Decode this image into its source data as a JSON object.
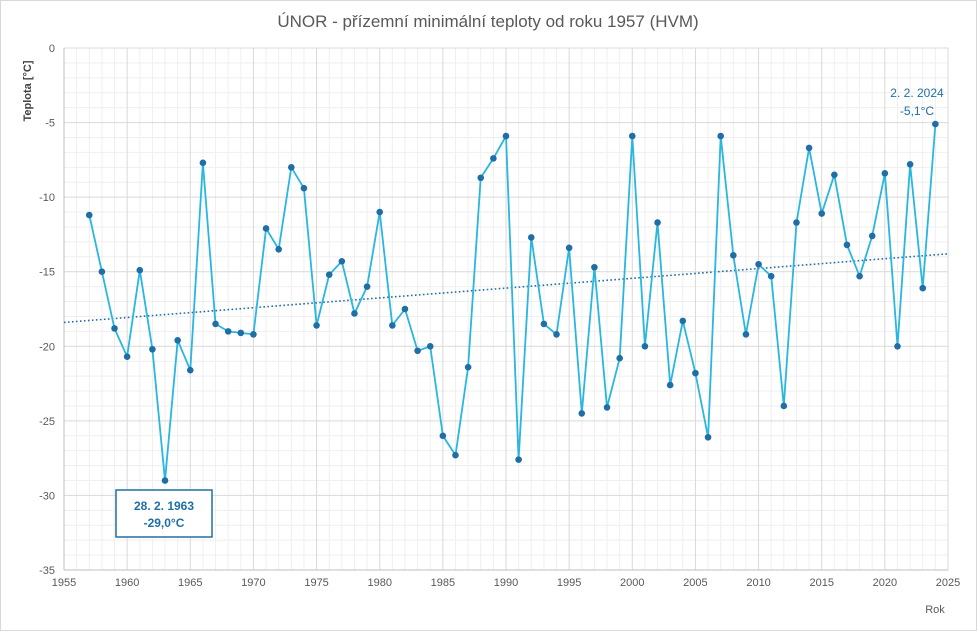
{
  "chart_data": {
    "type": "line",
    "title": "ÚNOR - přízemní minimální teploty od roku 1957 (HVM)",
    "xlabel": "Rok",
    "ylabel": "Teplota [°C]",
    "xlim": [
      1955,
      2025
    ],
    "ylim": [
      -35,
      0
    ],
    "x_ticks": [
      "1955",
      "1960",
      "1965",
      "1970",
      "1975",
      "1980",
      "1985",
      "1990",
      "1995",
      "2000",
      "2005",
      "2010",
      "2015",
      "2020",
      "2025"
    ],
    "y_ticks": [
      "0",
      "-5",
      "-10",
      "-15",
      "-20",
      "-25",
      "-30",
      "-35"
    ],
    "grid": true,
    "series": [
      {
        "color": "#29b6e0",
        "marker_color": "#1f6fa6",
        "x": [
          1957,
          1958,
          1959,
          1960,
          1961,
          1962,
          1963,
          1964,
          1965,
          1966,
          1967,
          1968,
          1969,
          1970,
          1971,
          1972,
          1973,
          1974,
          1975,
          1976,
          1977,
          1978,
          1979,
          1980,
          1981,
          1982,
          1983,
          1984,
          1985,
          1986,
          1987,
          1988,
          1989,
          1990,
          1991,
          1992,
          1993,
          1994,
          1995,
          1996,
          1997,
          1998,
          1999,
          2000,
          2001,
          2002,
          2003,
          2004,
          2005,
          2006,
          2007,
          2008,
          2009,
          2010,
          2011,
          2012,
          2013,
          2014,
          2015,
          2016,
          2017,
          2018,
          2019,
          2020,
          2021,
          2022,
          2023,
          2024
        ],
        "values": [
          -11.2,
          -15.0,
          -18.8,
          -20.7,
          -14.9,
          -20.2,
          -29.0,
          -19.6,
          -21.6,
          -7.7,
          -18.5,
          -19.0,
          -19.1,
          -19.2,
          -12.1,
          -13.5,
          -8.0,
          -9.4,
          -18.6,
          -15.2,
          -14.3,
          -17.8,
          -16.0,
          -11.0,
          -18.6,
          -17.5,
          -20.3,
          -20.0,
          -26.0,
          -27.3,
          -21.4,
          -8.7,
          -7.4,
          -5.9,
          -27.6,
          -12.7,
          -18.5,
          -19.2,
          -13.4,
          -24.5,
          -14.7,
          -24.1,
          -20.8,
          -5.9,
          -20.0,
          -11.7,
          -22.6,
          -18.3,
          -21.8,
          -26.1,
          -5.9,
          -13.9,
          -19.2,
          -14.5,
          -15.3,
          -24.0,
          -11.7,
          -6.7,
          -11.1,
          -8.5,
          -13.2,
          -15.3,
          -12.6,
          -8.4,
          -20.0,
          -7.8,
          -16.1,
          -5.1
        ]
      }
    ],
    "trendline": {
      "style": "dotted",
      "color": "#1f6fa6",
      "start": [
        1955,
        -18.4
      ],
      "end": [
        2025,
        -13.8
      ]
    },
    "annotations": [
      {
        "line1": "28. 2. 1963",
        "line2": "-29,0°C",
        "boxed": true
      },
      {
        "line1": "2. 2. 2024",
        "line2": "-5,1°C",
        "boxed": false
      }
    ]
  }
}
